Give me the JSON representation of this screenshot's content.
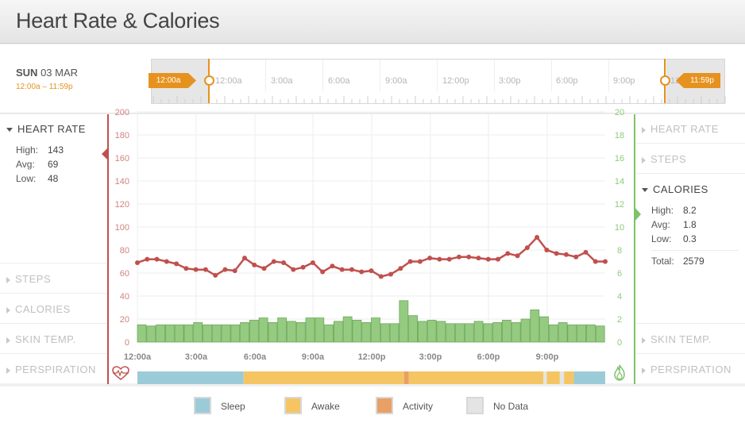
{
  "page": {
    "title": "Heart Rate & Calories"
  },
  "date": {
    "day": "SUN",
    "date": "03 MAR",
    "range": "12:00a – 11:59p"
  },
  "timeline": {
    "labels": [
      "12:00a",
      "3:00a",
      "6:00a",
      "9:00a",
      "12:00p",
      "3:00p",
      "6:00p",
      "9:00p",
      "12"
    ],
    "start_flag": "12:00a",
    "end_flag": "11:59p"
  },
  "left_sidebar": {
    "active": {
      "label": "HEART RATE",
      "stats": [
        {
          "k": "High:",
          "v": "143"
        },
        {
          "k": "Avg:",
          "v": "69"
        },
        {
          "k": "Low:",
          "v": "48"
        }
      ]
    },
    "items": [
      "STEPS",
      "CALORIES",
      "SKIN TEMP.",
      "PERSPIRATION"
    ]
  },
  "right_sidebar": {
    "items_top": [
      "HEART RATE",
      "STEPS"
    ],
    "active": {
      "label": "CALORIES",
      "stats": [
        {
          "k": "High:",
          "v": "8.2"
        },
        {
          "k": "Avg:",
          "v": "1.8"
        },
        {
          "k": "Low:",
          "v": "0.3"
        }
      ],
      "total": {
        "k": "Total:",
        "v": "2579"
      }
    },
    "items_bottom": [
      "SKIN TEMP.",
      "PERSPIRATION"
    ]
  },
  "legend": [
    {
      "label": "Sleep",
      "color": "#9ccbd8"
    },
    {
      "label": "Awake",
      "color": "#f5c564"
    },
    {
      "label": "Activity",
      "color": "#e8a065"
    },
    {
      "label": "No Data",
      "color": "#e4e4e4"
    }
  ],
  "colors": {
    "accent": "#e6921f",
    "heart": "#c0504d",
    "calories": "#7ec26a",
    "calories_bar": "#94cb80"
  },
  "chart_data": {
    "type": "line+bar",
    "x_tick_labels": [
      "12:00a",
      "3:00a",
      "6:00a",
      "9:00a",
      "12:00p",
      "3:00p",
      "6:00p",
      "9:00p"
    ],
    "left_axis": {
      "ticks": [
        "0",
        "20",
        "40",
        "60",
        "80",
        "100",
        "120",
        "140",
        "160",
        "180",
        "200"
      ],
      "ylim": [
        0,
        200
      ]
    },
    "right_axis": {
      "ticks": [
        "0",
        "2",
        "4",
        "6",
        "8",
        "10",
        "12",
        "14",
        "16",
        "18",
        "20"
      ],
      "ylim": [
        0,
        20
      ]
    },
    "series": [
      {
        "type": "line",
        "values": [
          69,
          72,
          72,
          70,
          68,
          64,
          63,
          63,
          58,
          63,
          62,
          73,
          67,
          64,
          70,
          69,
          63,
          65,
          69,
          61,
          66,
          63,
          63,
          61,
          62,
          57,
          59,
          64,
          70,
          70,
          73,
          72,
          72,
          74,
          74,
          73,
          72,
          72,
          77,
          75,
          82,
          91,
          80,
          77,
          76,
          74,
          78,
          70,
          70
        ]
      },
      {
        "type": "bar",
        "values": [
          1.5,
          1.4,
          1.5,
          1.5,
          1.5,
          1.5,
          1.7,
          1.5,
          1.5,
          1.5,
          1.5,
          1.7,
          1.9,
          2.1,
          1.7,
          2.1,
          1.8,
          1.7,
          2.1,
          2.1,
          1.5,
          1.8,
          2.2,
          1.9,
          1.7,
          2.1,
          1.6,
          1.6,
          3.6,
          2.3,
          1.8,
          1.9,
          1.8,
          1.6,
          1.6,
          1.6,
          1.8,
          1.6,
          1.7,
          1.9,
          1.7,
          2.0,
          2.8,
          2.2,
          1.5,
          1.7,
          1.5,
          1.5,
          1.5,
          1.4
        ]
      }
    ],
    "activity_strip": [
      {
        "state": "Sleep",
        "from": 0,
        "to": 0.227
      },
      {
        "state": "Awake",
        "from": 0.227,
        "to": 0.57
      },
      {
        "state": "Activity",
        "from": 0.57,
        "to": 0.58
      },
      {
        "state": "Awake",
        "from": 0.58,
        "to": 0.868
      },
      {
        "state": "No Data",
        "from": 0.868,
        "to": 0.875
      },
      {
        "state": "Awake",
        "from": 0.875,
        "to": 0.903
      },
      {
        "state": "No Data",
        "from": 0.903,
        "to": 0.912
      },
      {
        "state": "Awake",
        "from": 0.912,
        "to": 0.933
      },
      {
        "state": "Sleep",
        "from": 0.933,
        "to": 1
      }
    ],
    "grid": true
  }
}
